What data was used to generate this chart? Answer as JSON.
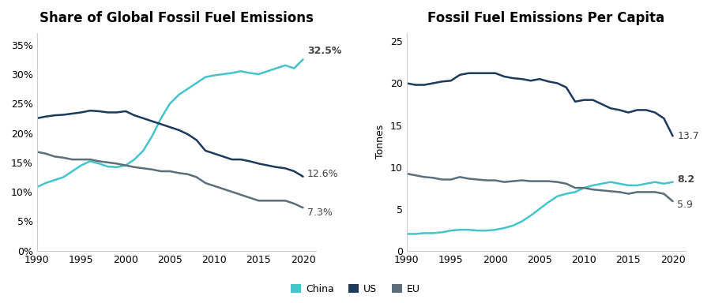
{
  "title1": "Share of Global Fossil Fuel Emissions",
  "title2": "Fossil Fuel Emissions Per Capita",
  "ylabel2": "Tonnes",
  "colors": {
    "china": "#45C4CB",
    "us": "#1B3A5C",
    "eu": "#5C6E7A"
  },
  "annot_color": "#444444",
  "years": [
    1990,
    1991,
    1992,
    1993,
    1994,
    1995,
    1996,
    1997,
    1998,
    1999,
    2000,
    2001,
    2002,
    2003,
    2004,
    2005,
    2006,
    2007,
    2008,
    2009,
    2010,
    2011,
    2012,
    2013,
    2014,
    2015,
    2016,
    2017,
    2018,
    2019,
    2020
  ],
  "share": {
    "china": [
      10.8,
      11.5,
      12.0,
      12.5,
      13.5,
      14.5,
      15.2,
      14.8,
      14.3,
      14.2,
      14.5,
      15.5,
      17.0,
      19.5,
      22.5,
      25.0,
      26.5,
      27.5,
      28.5,
      29.5,
      29.8,
      30.0,
      30.2,
      30.5,
      30.2,
      30.0,
      30.5,
      31.0,
      31.5,
      31.0,
      32.5
    ],
    "us": [
      22.5,
      22.8,
      23.0,
      23.1,
      23.3,
      23.5,
      23.8,
      23.7,
      23.5,
      23.5,
      23.7,
      23.0,
      22.5,
      22.0,
      21.5,
      21.0,
      20.5,
      19.8,
      18.8,
      17.0,
      16.5,
      16.0,
      15.5,
      15.5,
      15.2,
      14.8,
      14.5,
      14.2,
      14.0,
      13.5,
      12.6
    ],
    "eu": [
      16.8,
      16.5,
      16.0,
      15.8,
      15.5,
      15.5,
      15.5,
      15.2,
      15.0,
      14.8,
      14.5,
      14.2,
      14.0,
      13.8,
      13.5,
      13.5,
      13.2,
      13.0,
      12.5,
      11.5,
      11.0,
      10.5,
      10.0,
      9.5,
      9.0,
      8.5,
      8.5,
      8.5,
      8.5,
      8.0,
      7.3
    ]
  },
  "percapita": {
    "china": [
      2.0,
      2.0,
      2.1,
      2.1,
      2.2,
      2.4,
      2.5,
      2.5,
      2.4,
      2.4,
      2.5,
      2.7,
      3.0,
      3.5,
      4.2,
      5.0,
      5.8,
      6.5,
      6.8,
      7.0,
      7.5,
      7.8,
      8.0,
      8.2,
      8.0,
      7.8,
      7.8,
      8.0,
      8.2,
      8.0,
      8.2
    ],
    "us": [
      20.0,
      19.8,
      19.8,
      20.0,
      20.2,
      20.3,
      21.0,
      21.2,
      21.2,
      21.2,
      21.2,
      20.8,
      20.6,
      20.5,
      20.3,
      20.5,
      20.2,
      20.0,
      19.5,
      17.8,
      18.0,
      18.0,
      17.5,
      17.0,
      16.8,
      16.5,
      16.8,
      16.8,
      16.5,
      15.8,
      13.7
    ],
    "eu": [
      9.2,
      9.0,
      8.8,
      8.7,
      8.5,
      8.5,
      8.8,
      8.6,
      8.5,
      8.4,
      8.4,
      8.2,
      8.3,
      8.4,
      8.3,
      8.3,
      8.3,
      8.2,
      8.0,
      7.5,
      7.5,
      7.3,
      7.2,
      7.1,
      7.0,
      6.8,
      7.0,
      7.0,
      7.0,
      6.8,
      5.9
    ]
  },
  "legend_labels": [
    "China",
    "US",
    "EU"
  ],
  "background_color": "#FFFFFF",
  "title_fontsize": 12,
  "tick_fontsize": 9,
  "annot_fontsize": 9,
  "line_width": 1.8,
  "spine_color": "#cccccc"
}
